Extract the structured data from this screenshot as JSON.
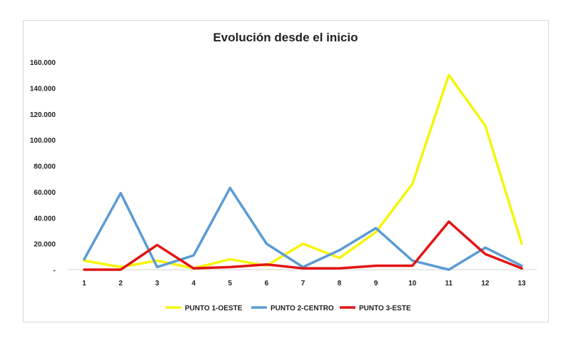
{
  "chart_data": {
    "type": "line",
    "title": "Evolución desde el inicio",
    "xlabel": "",
    "ylabel": "",
    "x": [
      "1",
      "2",
      "3",
      "4",
      "5",
      "6",
      "7",
      "8",
      "9",
      "10",
      "11",
      "12",
      "13"
    ],
    "ylim": [
      0,
      160000
    ],
    "yticks": [
      0,
      20000,
      40000,
      60000,
      80000,
      100000,
      120000,
      140000,
      160000
    ],
    "ytick_labels": [
      "-",
      "20.000",
      "40.000",
      "60.000",
      "80.000",
      "100.000",
      "120.000",
      "140.000",
      "160.000"
    ],
    "grid": false,
    "legend_position": "bottom",
    "series": [
      {
        "name": "PUNTO 1-OESTE",
        "color": "#f5f50a",
        "values": [
          7000,
          2000,
          7000,
          1000,
          8000,
          3000,
          20000,
          9000,
          29000,
          66000,
          150000,
          111000,
          20000
        ]
      },
      {
        "name": "PUNTO 2-CENTRO",
        "color": "#5b9bd5",
        "values": [
          8000,
          59000,
          2000,
          11000,
          63000,
          20000,
          2000,
          15000,
          32000,
          7000,
          0,
          17000,
          3000
        ]
      },
      {
        "name": "PUNTO 3-ESTE",
        "color": "#e21414",
        "values": [
          0,
          0,
          19000,
          1000,
          2000,
          4000,
          1000,
          1000,
          3000,
          3000,
          37000,
          12000,
          1000
        ]
      }
    ]
  }
}
